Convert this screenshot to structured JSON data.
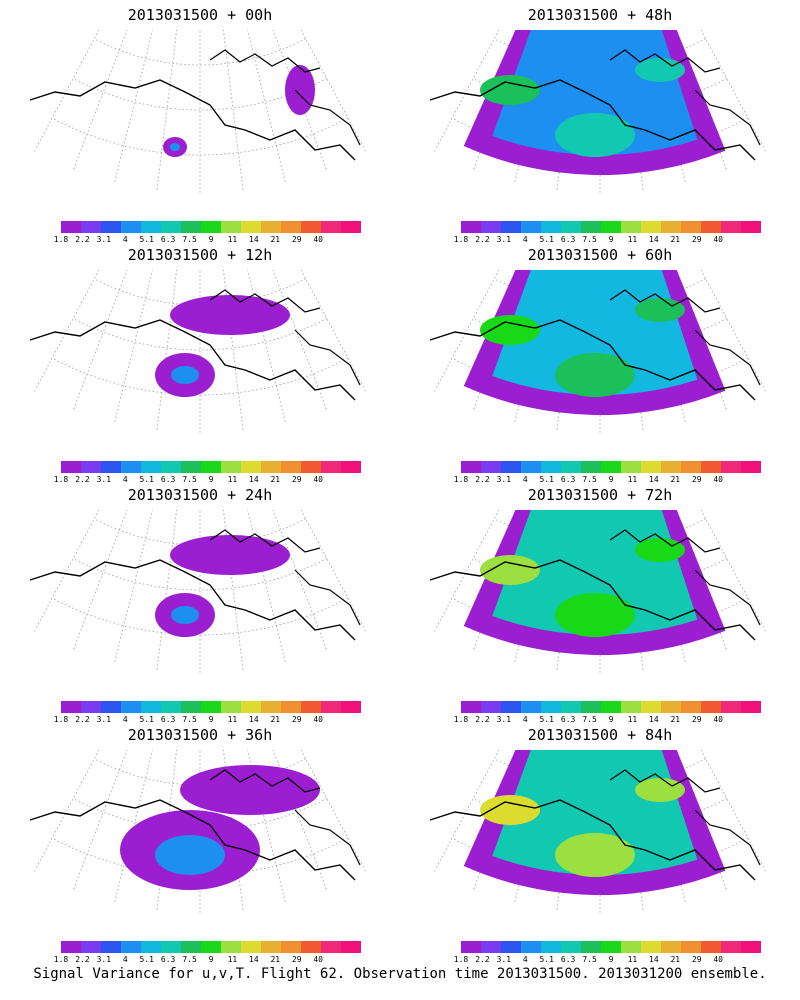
{
  "panels": [
    {
      "title": "2013031500 + 00h",
      "level": 0
    },
    {
      "title": "2013031500 + 48h",
      "level": 3
    },
    {
      "title": "2013031500 + 12h",
      "level": 1
    },
    {
      "title": "2013031500 + 60h",
      "level": 4
    },
    {
      "title": "2013031500 + 24h",
      "level": 1
    },
    {
      "title": "2013031500 + 72h",
      "level": 5
    },
    {
      "title": "2013031500 + 36h",
      "level": 2
    },
    {
      "title": "2013031500 + 84h",
      "level": 6
    }
  ],
  "colorbar": {
    "colors": [
      "#9b1fd0",
      "#7a3cf0",
      "#2f55f0",
      "#1d8ff0",
      "#12b8e0",
      "#12c8b0",
      "#1bc05a",
      "#18d818",
      "#9be040",
      "#dcdc30",
      "#e8b030",
      "#f09030",
      "#f05a30",
      "#f02a78",
      "#f0107a"
    ],
    "labels": [
      "1.8",
      "2.2",
      "3.1",
      "4",
      "5.1",
      "6.3",
      "7.5",
      "9",
      "11",
      "14",
      "21",
      "29",
      "40"
    ]
  },
  "caption": "Signal Variance for u,v,T. Flight 62. Observation time 2013031500. 2013031200 ensemble."
}
